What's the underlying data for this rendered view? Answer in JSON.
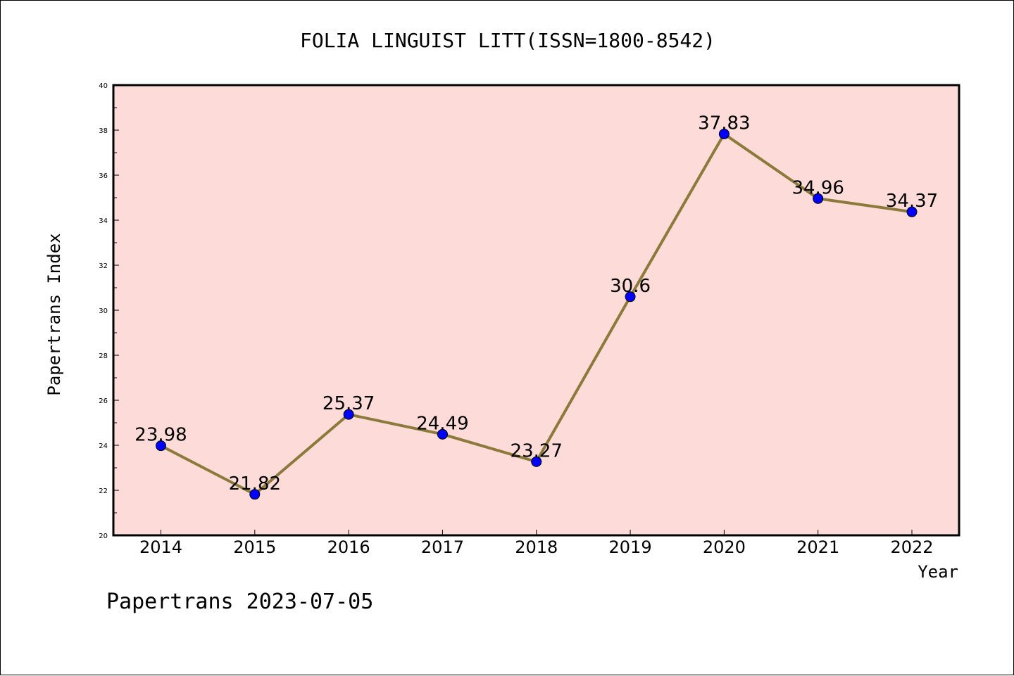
{
  "chart_data": {
    "type": "line",
    "title": "FOLIA LINGUIST LITT(ISSN=1800-8542)",
    "xlabel": "Year",
    "ylabel": "Papertrans Index",
    "categories": [
      "2014",
      "2015",
      "2016",
      "2017",
      "2018",
      "2019",
      "2020",
      "2021",
      "2022"
    ],
    "series": [
      {
        "values": [
          23.98,
          21.82,
          25.37,
          24.49,
          23.27,
          30.6,
          37.83,
          34.96,
          34.37
        ],
        "labels": [
          "23.98",
          "21.82",
          "25.37",
          "24.49",
          "23.27",
          "30.6",
          "37.83",
          "34.96",
          "34.37"
        ]
      }
    ],
    "ylim": [
      20,
      40
    ],
    "yticks": [
      "20",
      "22",
      "24",
      "26",
      "28",
      "30",
      "32",
      "34",
      "36",
      "38",
      "40"
    ],
    "grid": false,
    "colors": {
      "plot_background": "#fddbd8",
      "line": "#8b7a3a",
      "marker": "#0000ff"
    }
  },
  "footer": "Papertrans 2023-07-05"
}
